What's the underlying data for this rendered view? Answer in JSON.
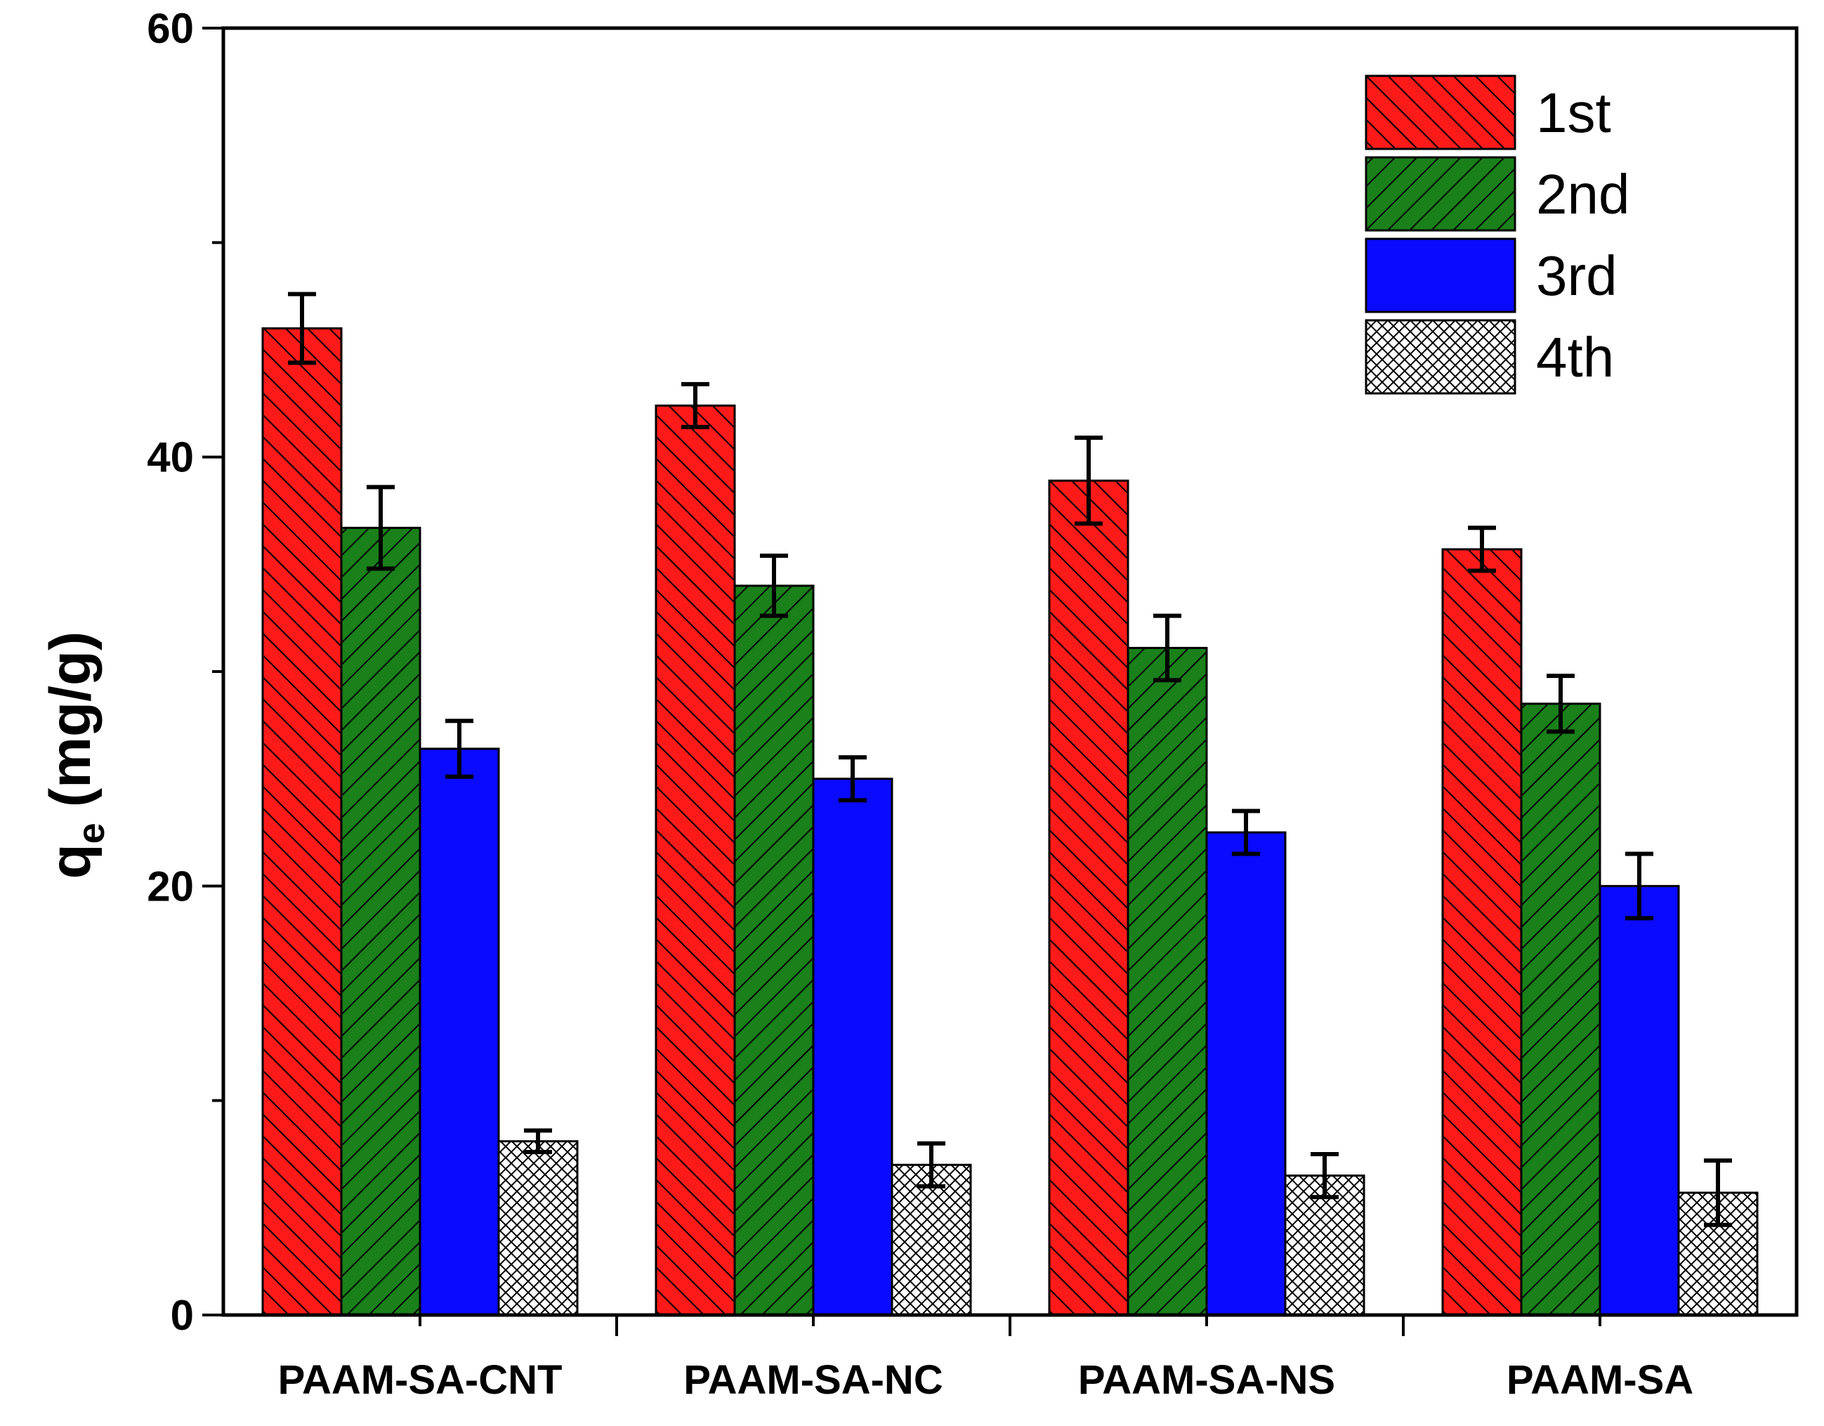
{
  "chart_data": {
    "type": "bar",
    "title": "",
    "xlabel": "",
    "ylabel": "q",
    "ylabel_subscript": "e",
    "ylabel_units": "(mg/g)",
    "ylim": [
      0,
      60
    ],
    "yticks": [
      0,
      20,
      40,
      60
    ],
    "ytick_labels": [
      "0",
      "20",
      "40",
      "60"
    ],
    "legend_position": "top-right",
    "categories": [
      "PAAM-SA-CNT",
      "PAAM-SA-NC",
      "PAAM-SA-NS",
      "PAAM-SA"
    ],
    "series": [
      {
        "name": "1st",
        "color": "#ff1a1a",
        "pattern": "hatch-back",
        "values": [
          46.0,
          42.4,
          38.9,
          35.7
        ],
        "errors": [
          1.6,
          1.0,
          2.0,
          1.0
        ]
      },
      {
        "name": "2nd",
        "color": "#1a801a",
        "pattern": "hatch-forward",
        "values": [
          36.7,
          34.0,
          31.1,
          28.5
        ],
        "errors": [
          1.9,
          1.4,
          1.5,
          1.3
        ]
      },
      {
        "name": "3rd",
        "color": "#0a0aff",
        "pattern": "solid",
        "values": [
          26.4,
          25.0,
          22.5,
          20.0
        ],
        "errors": [
          1.3,
          1.0,
          1.0,
          1.5
        ]
      },
      {
        "name": "4th",
        "color": "#ffffff",
        "pattern": "crosshatch",
        "values": [
          8.1,
          7.0,
          6.5,
          5.7
        ],
        "errors": [
          0.5,
          1.0,
          1.0,
          1.5
        ]
      }
    ]
  }
}
